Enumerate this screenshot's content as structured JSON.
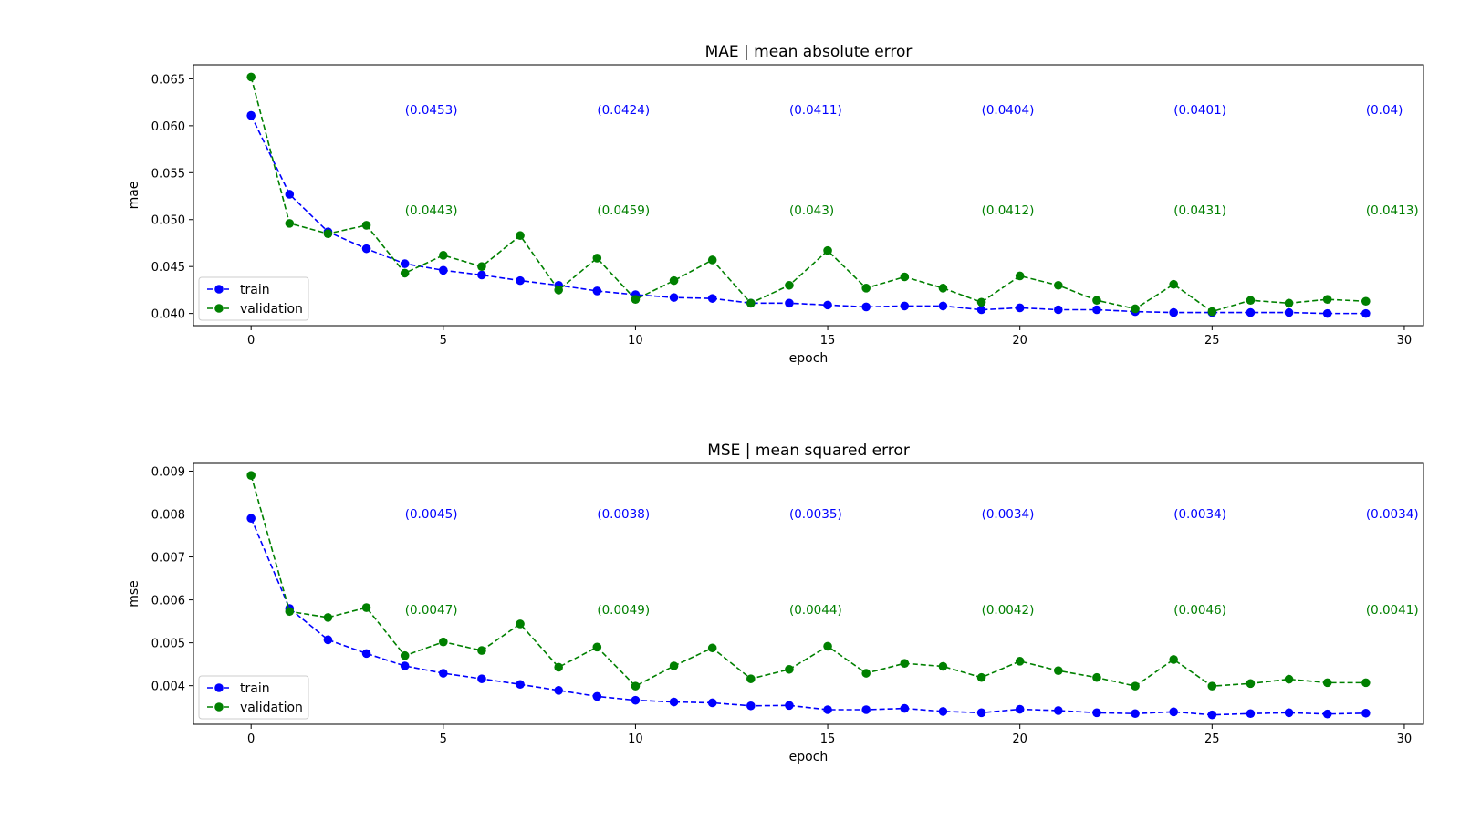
{
  "chart_data": [
    {
      "type": "line",
      "title": "MAE | mean absolute error",
      "xlabel": "epoch",
      "ylabel": "mae",
      "xlim": [
        -1.5,
        30.5
      ],
      "ylim": [
        0.0387,
        0.0665
      ],
      "xticks": [
        0,
        5,
        10,
        15,
        20,
        25,
        30
      ],
      "yticks": [
        0.04,
        0.045,
        0.05,
        0.055,
        0.06,
        0.065
      ],
      "ytick_labels": [
        "0.040",
        "0.045",
        "0.050",
        "0.055",
        "0.060",
        "0.065"
      ],
      "grid": false,
      "legend": "lower-left",
      "x": [
        0,
        1,
        2,
        3,
        4,
        5,
        6,
        7,
        8,
        9,
        10,
        11,
        12,
        13,
        14,
        15,
        16,
        17,
        18,
        19,
        20,
        21,
        22,
        23,
        24,
        25,
        26,
        27,
        28,
        29
      ],
      "series": [
        {
          "name": "train",
          "color": "#0000ff",
          "values": [
            0.0611,
            0.0527,
            0.0487,
            0.0469,
            0.0453,
            0.0446,
            0.0441,
            0.0435,
            0.043,
            0.0424,
            0.042,
            0.0417,
            0.0416,
            0.0411,
            0.0411,
            0.0409,
            0.0407,
            0.0408,
            0.0408,
            0.0404,
            0.0406,
            0.0404,
            0.0404,
            0.0402,
            0.0401,
            0.0401,
            0.0401,
            0.0401,
            0.04,
            0.04
          ]
        },
        {
          "name": "validation",
          "color": "#008000",
          "values": [
            0.0652,
            0.0496,
            0.0485,
            0.0494,
            0.0443,
            0.0462,
            0.045,
            0.0483,
            0.0425,
            0.0459,
            0.0415,
            0.0435,
            0.0457,
            0.0411,
            0.043,
            0.0467,
            0.0427,
            0.0439,
            0.0427,
            0.0412,
            0.044,
            0.043,
            0.0414,
            0.0405,
            0.0431,
            0.0402,
            0.0414,
            0.0411,
            0.0415,
            0.0413
          ]
        }
      ],
      "annotations": {
        "train": [
          {
            "x": 4,
            "text": "(0.0453)"
          },
          {
            "x": 9,
            "text": "(0.0424)"
          },
          {
            "x": 14,
            "text": "(0.0411)"
          },
          {
            "x": 19,
            "text": "(0.0404)"
          },
          {
            "x": 24,
            "text": "(0.0401)"
          },
          {
            "x": 29,
            "text": "(0.04)"
          }
        ],
        "validation": [
          {
            "x": 4,
            "text": "(0.0443)"
          },
          {
            "x": 9,
            "text": "(0.0459)"
          },
          {
            "x": 14,
            "text": "(0.043)"
          },
          {
            "x": 19,
            "text": "(0.0412)"
          },
          {
            "x": 24,
            "text": "(0.0431)"
          },
          {
            "x": 29,
            "text": "(0.0413)"
          }
        ]
      }
    },
    {
      "type": "line",
      "title": "MSE | mean squared error",
      "xlabel": "epoch",
      "ylabel": "mse",
      "xlim": [
        -1.5,
        30.5
      ],
      "ylim": [
        0.0031,
        0.00918
      ],
      "xticks": [
        0,
        5,
        10,
        15,
        20,
        25,
        30
      ],
      "yticks": [
        0.004,
        0.005,
        0.006,
        0.007,
        0.008,
        0.009
      ],
      "ytick_labels": [
        "0.004",
        "0.005",
        "0.006",
        "0.007",
        "0.008",
        "0.009"
      ],
      "grid": false,
      "legend": "lower-left",
      "x": [
        0,
        1,
        2,
        3,
        4,
        5,
        6,
        7,
        8,
        9,
        10,
        11,
        12,
        13,
        14,
        15,
        16,
        17,
        18,
        19,
        20,
        21,
        22,
        23,
        24,
        25,
        26,
        27,
        28,
        29
      ],
      "series": [
        {
          "name": "train",
          "color": "#0000ff",
          "values": [
            0.0079,
            0.0058,
            0.00507,
            0.00475,
            0.00446,
            0.00429,
            0.00416,
            0.00403,
            0.00389,
            0.00375,
            0.00366,
            0.00362,
            0.0036,
            0.00353,
            0.00354,
            0.00344,
            0.00344,
            0.00347,
            0.0034,
            0.00337,
            0.00345,
            0.00342,
            0.00337,
            0.00335,
            0.00339,
            0.00332,
            0.00335,
            0.00337,
            0.00334,
            0.00336
          ]
        },
        {
          "name": "validation",
          "color": "#008000",
          "values": [
            0.0089,
            0.00573,
            0.00559,
            0.00582,
            0.0047,
            0.00502,
            0.00482,
            0.00544,
            0.00443,
            0.0049,
            0.00399,
            0.00446,
            0.00488,
            0.00416,
            0.00438,
            0.00492,
            0.00429,
            0.00452,
            0.00445,
            0.00419,
            0.00457,
            0.00435,
            0.00419,
            0.00399,
            0.00461,
            0.00399,
            0.00405,
            0.00415,
            0.00407,
            0.00407
          ]
        }
      ],
      "annotations": {
        "train": [
          {
            "x": 4,
            "text": "(0.0045)"
          },
          {
            "x": 9,
            "text": "(0.0038)"
          },
          {
            "x": 14,
            "text": "(0.0035)"
          },
          {
            "x": 19,
            "text": "(0.0034)"
          },
          {
            "x": 24,
            "text": "(0.0034)"
          },
          {
            "x": 29,
            "text": "(0.0034)"
          }
        ],
        "validation": [
          {
            "x": 4,
            "text": "(0.0047)"
          },
          {
            "x": 9,
            "text": "(0.0049)"
          },
          {
            "x": 14,
            "text": "(0.0044)"
          },
          {
            "x": 19,
            "text": "(0.0042)"
          },
          {
            "x": 24,
            "text": "(0.0046)"
          },
          {
            "x": 29,
            "text": "(0.0041)"
          }
        ]
      }
    }
  ]
}
